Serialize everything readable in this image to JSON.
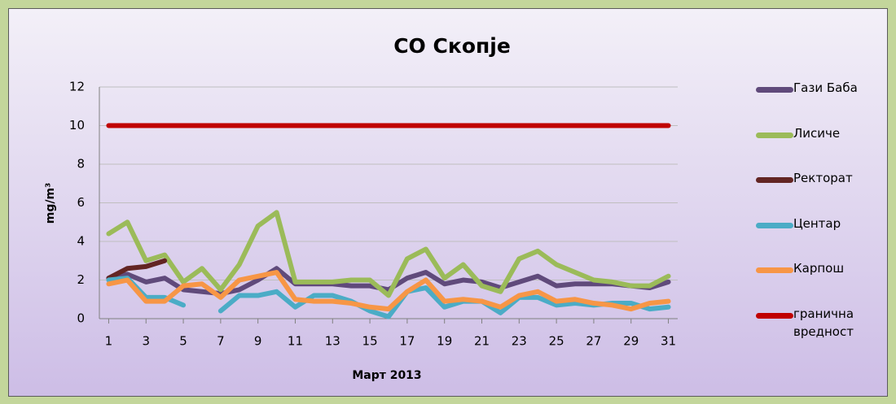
{
  "chart_data": {
    "type": "line",
    "title": "CO Скопје",
    "x_label": "Март 2013",
    "y_label": "mg/m³",
    "x": [
      1,
      2,
      3,
      4,
      5,
      6,
      7,
      8,
      9,
      10,
      11,
      12,
      13,
      14,
      15,
      16,
      17,
      18,
      19,
      20,
      21,
      22,
      23,
      24,
      25,
      26,
      27,
      28,
      29,
      30,
      31
    ],
    "xlim": [
      0.5,
      31.5
    ],
    "xticks": [
      1,
      3,
      5,
      7,
      9,
      11,
      13,
      15,
      17,
      19,
      21,
      23,
      25,
      27,
      29,
      31
    ],
    "ylim": [
      0,
      12
    ],
    "yticks": [
      0,
      2,
      4,
      6,
      8,
      10,
      12
    ],
    "grid": true,
    "legend": "right",
    "series": [
      {
        "name": "Гази Баба",
        "color": "#604a7b",
        "values": [
          2.1,
          2.3,
          1.9,
          2.1,
          1.5,
          1.4,
          1.3,
          1.5,
          2.0,
          2.6,
          1.8,
          1.8,
          1.8,
          1.7,
          1.7,
          1.5,
          2.1,
          2.4,
          1.8,
          2.0,
          1.9,
          1.6,
          1.9,
          2.2,
          1.7,
          1.8,
          1.8,
          1.8,
          1.7,
          1.6,
          1.9
        ]
      },
      {
        "name": "Лисиче",
        "color": "#9bbb59",
        "values": [
          4.4,
          5.0,
          3.0,
          3.3,
          1.9,
          2.6,
          1.5,
          2.8,
          4.8,
          5.5,
          1.9,
          1.9,
          1.9,
          2.0,
          2.0,
          1.2,
          3.1,
          3.6,
          2.1,
          2.8,
          1.7,
          1.4,
          3.1,
          3.5,
          2.8,
          2.4,
          2.0,
          1.9,
          1.7,
          1.7,
          2.2
        ]
      },
      {
        "name": "Ректорат",
        "color": "#632523",
        "values": [
          2.1,
          2.6,
          2.7,
          3.0,
          null,
          null,
          null,
          null,
          null,
          null,
          null,
          null,
          null,
          null,
          null,
          null,
          null,
          null,
          null,
          null,
          null,
          null,
          null,
          null,
          null,
          null,
          null,
          null,
          null,
          null,
          null
        ]
      },
      {
        "name": "Центар",
        "color": "#4bacc6",
        "values": [
          2.0,
          2.1,
          1.1,
          1.1,
          0.7,
          null,
          0.4,
          1.2,
          1.2,
          1.4,
          0.6,
          1.2,
          1.2,
          0.9,
          0.4,
          0.1,
          1.4,
          1.6,
          0.6,
          0.9,
          0.9,
          0.3,
          1.1,
          1.1,
          0.7,
          0.8,
          0.7,
          0.8,
          0.8,
          0.5,
          0.6
        ]
      },
      {
        "name": "Карпош",
        "color": "#f79646",
        "values": [
          1.8,
          2.0,
          0.9,
          0.9,
          1.7,
          1.8,
          1.1,
          2.0,
          2.2,
          2.4,
          1.0,
          0.9,
          0.9,
          0.8,
          0.6,
          0.5,
          1.4,
          2.0,
          0.9,
          1.0,
          0.9,
          0.6,
          1.2,
          1.4,
          0.9,
          1.0,
          0.8,
          0.7,
          0.5,
          0.8,
          0.9
        ]
      },
      {
        "name": "гранична вредност",
        "color": "#c00000",
        "values": [
          10,
          10,
          10,
          10,
          10,
          10,
          10,
          10,
          10,
          10,
          10,
          10,
          10,
          10,
          10,
          10,
          10,
          10,
          10,
          10,
          10,
          10,
          10,
          10,
          10,
          10,
          10,
          10,
          10,
          10,
          10
        ]
      }
    ]
  }
}
